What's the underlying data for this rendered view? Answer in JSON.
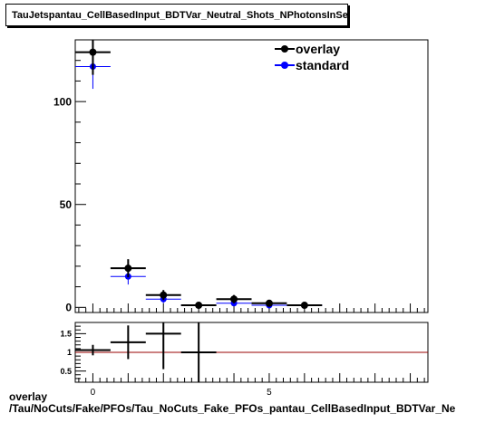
{
  "title": "TauJetspantau_CellBasedInput_BDTVar_Neutral_Shots_NPhotonsInSeed",
  "caption": {
    "line1": "overlay",
    "line2": "/Tau/NoCuts/Fake/PFOs/Tau_NoCuts_Fake_PFOs_pantau_CellBasedInput_BDTVar_Ne"
  },
  "colors": {
    "overlay": "#000000",
    "standard": "#0000ff",
    "ratio_line": "#990000"
  },
  "chart_data": [
    {
      "type": "scatter",
      "name": "main",
      "xlim": [
        -0.5,
        9.5
      ],
      "ylim": [
        -2.5,
        130
      ],
      "xticks": [
        0,
        5
      ],
      "yticks": [
        0,
        50,
        100
      ],
      "ytick_labels": [
        "0",
        "50",
        "100"
      ],
      "legend": {
        "placement": "top-right",
        "entries": [
          "overlay",
          "standard"
        ]
      },
      "series": [
        {
          "name": "overlay",
          "x": [
            0,
            1,
            2,
            3,
            4,
            5,
            6
          ],
          "xerr": 0.5,
          "y": [
            124,
            19,
            6,
            1,
            4,
            2,
            1
          ],
          "yerr": [
            11,
            4.4,
            2.4,
            1,
            2,
            1.4,
            1
          ]
        },
        {
          "name": "standard",
          "x": [
            0,
            1,
            2,
            3,
            4,
            5,
            6
          ],
          "xerr": 0.5,
          "y": [
            117,
            15,
            4,
            1,
            2,
            1,
            1
          ],
          "yerr": [
            10.8,
            3.9,
            2,
            1,
            1.4,
            1,
            1
          ]
        }
      ]
    },
    {
      "type": "scatter",
      "name": "ratio",
      "xlim": [
        -0.5,
        9.5
      ],
      "ylim": [
        0.2,
        1.8
      ],
      "xticks": [
        0,
        5
      ],
      "xtick_labels": [
        "0",
        "5"
      ],
      "yticks": [
        0.5,
        1,
        1.5
      ],
      "ytick_labels": [
        "0.5",
        "1",
        "1.5"
      ],
      "reference_line": 1,
      "series": [
        {
          "name": "ratio",
          "x": [
            0,
            1,
            2,
            3
          ],
          "xerr": 0.5,
          "y": [
            1.06,
            1.27,
            1.5,
            1.0
          ],
          "yerr": [
            0.14,
            0.45,
            0.95,
            1.45
          ]
        }
      ]
    }
  ]
}
